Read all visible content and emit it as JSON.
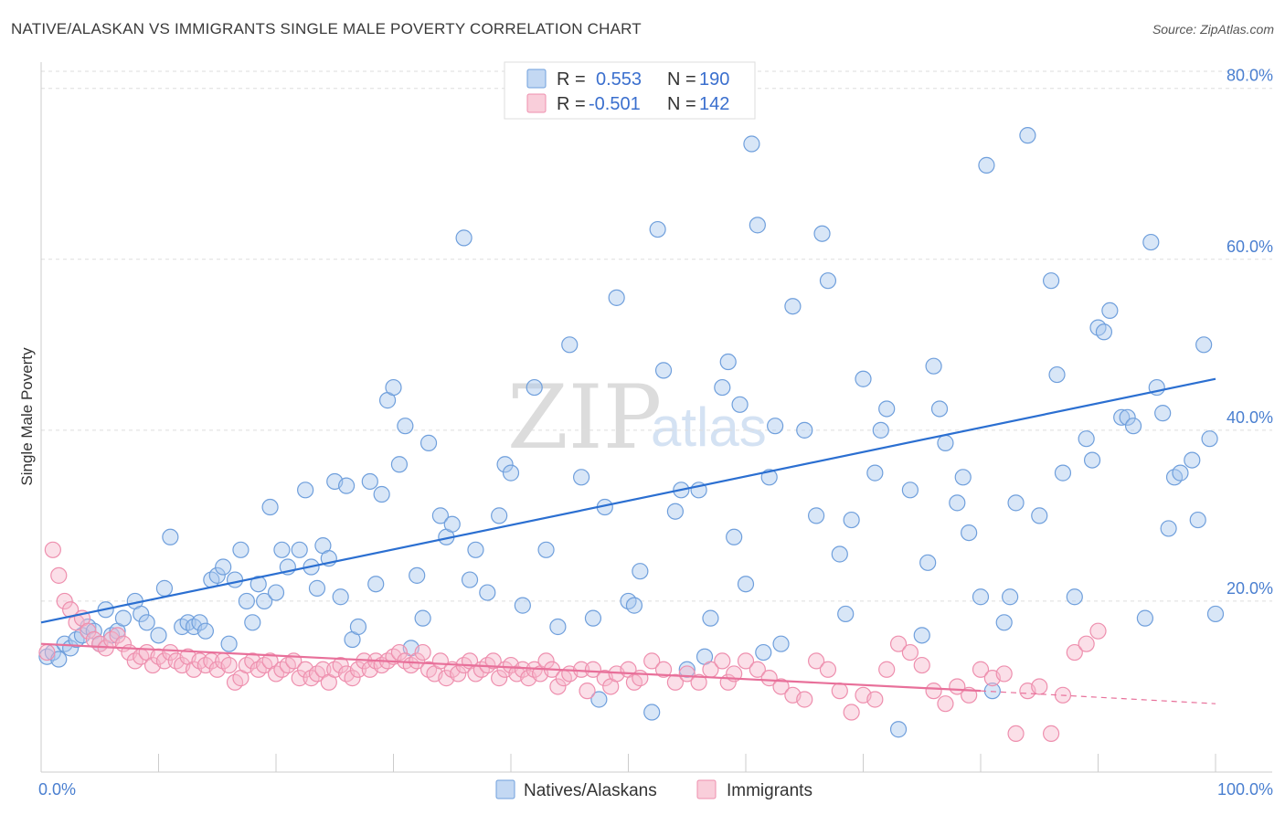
{
  "title": "NATIVE/ALASKAN VS IMMIGRANTS SINGLE MALE POVERTY CORRELATION CHART",
  "source": "Source: ZipAtlas.com",
  "watermark": {
    "part1": "ZIP",
    "part2": "atlas"
  },
  "colors": {
    "natives_fill": "#a9c7ee",
    "natives_stroke": "#6f9fdc",
    "natives_line": "#2b6fd1",
    "immigrants_fill": "#f6b9cb",
    "immigrants_stroke": "#ee8fae",
    "immigrants_line": "#e8709a",
    "axis_label": "#4a7fd0",
    "grid": "#dddddd"
  },
  "legend_top": {
    "rows": [
      {
        "r_label": "R =",
        "r_value": "0.553",
        "n_label": "N =",
        "n_value": "190",
        "series": "natives"
      },
      {
        "r_label": "R =",
        "r_value": "-0.501",
        "n_label": "N =",
        "n_value": "142",
        "series": "immigrants"
      }
    ]
  },
  "legend_bottom": {
    "items": [
      {
        "label": "Natives/Alaskans",
        "series": "natives"
      },
      {
        "label": "Immigrants",
        "series": "immigrants"
      }
    ]
  },
  "chart_data": {
    "type": "scatter",
    "title": "NATIVE/ALASKAN VS IMMIGRANTS SINGLE MALE POVERTY CORRELATION CHART",
    "xlabel": "",
    "ylabel": "Single Male Poverty",
    "xlim": [
      0,
      100
    ],
    "ylim": [
      0,
      82
    ],
    "x_tick_labels": [
      {
        "value": 0,
        "label": "0.0%"
      },
      {
        "value": 100,
        "label": "100.0%"
      }
    ],
    "y_ticks": [
      {
        "value": 20,
        "label": "20.0%"
      },
      {
        "value": 40,
        "label": "40.0%"
      },
      {
        "value": 60,
        "label": "60.0%"
      },
      {
        "value": 80,
        "label": "80.0%"
      }
    ],
    "x_minor_ticks": [
      0,
      10,
      20,
      30,
      40,
      50,
      60,
      70,
      80,
      90,
      100
    ],
    "grid": true,
    "series": [
      {
        "name": "Natives/Alaskans",
        "key": "natives",
        "R": 0.553,
        "N": 190,
        "trend": {
          "x": [
            0,
            100
          ],
          "y": [
            17.5,
            46
          ]
        },
        "points": [
          [
            0.5,
            13.5
          ],
          [
            1,
            14
          ],
          [
            1.5,
            13.2
          ],
          [
            2,
            15
          ],
          [
            2.5,
            14.5
          ],
          [
            3,
            15.5
          ],
          [
            3.5,
            16
          ],
          [
            4,
            17
          ],
          [
            4.5,
            16.5
          ],
          [
            5,
            15
          ],
          [
            5.5,
            19
          ],
          [
            6,
            16
          ],
          [
            6.5,
            16.5
          ],
          [
            7,
            18
          ],
          [
            8,
            20
          ],
          [
            8.5,
            18.5
          ],
          [
            9,
            17.5
          ],
          [
            10,
            16
          ],
          [
            10.5,
            21.5
          ],
          [
            11,
            27.5
          ],
          [
            12,
            17
          ],
          [
            12.5,
            17.5
          ],
          [
            13,
            17
          ],
          [
            13.5,
            17.5
          ],
          [
            14,
            16.5
          ],
          [
            14.5,
            22.5
          ],
          [
            15,
            23
          ],
          [
            15.5,
            24
          ],
          [
            16,
            15
          ],
          [
            16.5,
            22.5
          ],
          [
            17,
            26
          ],
          [
            17.5,
            20
          ],
          [
            18,
            17.5
          ],
          [
            18.5,
            22
          ],
          [
            19,
            20
          ],
          [
            19.5,
            31
          ],
          [
            20,
            21
          ],
          [
            20.5,
            26
          ],
          [
            21,
            24
          ],
          [
            22,
            26
          ],
          [
            22.5,
            33
          ],
          [
            23,
            24
          ],
          [
            23.5,
            21.5
          ],
          [
            24,
            26.5
          ],
          [
            24.5,
            25
          ],
          [
            25,
            34
          ],
          [
            25.5,
            20.5
          ],
          [
            26,
            33.5
          ],
          [
            26.5,
            15.5
          ],
          [
            27,
            17
          ],
          [
            28,
            34
          ],
          [
            28.5,
            22
          ],
          [
            29,
            32.5
          ],
          [
            29.5,
            43.5
          ],
          [
            30,
            45
          ],
          [
            30.5,
            36
          ],
          [
            31,
            40.5
          ],
          [
            31.5,
            14.5
          ],
          [
            32,
            23
          ],
          [
            32.5,
            18
          ],
          [
            33,
            38.5
          ],
          [
            34,
            30
          ],
          [
            34.5,
            27.5
          ],
          [
            35,
            29
          ],
          [
            36,
            62.5
          ],
          [
            36.5,
            22.5
          ],
          [
            37,
            26
          ],
          [
            38,
            21
          ],
          [
            39,
            30
          ],
          [
            39.5,
            36
          ],
          [
            40,
            35
          ],
          [
            41,
            19.5
          ],
          [
            42,
            45
          ],
          [
            43,
            26
          ],
          [
            44,
            17
          ],
          [
            45,
            50
          ],
          [
            46,
            34.5
          ],
          [
            47,
            18
          ],
          [
            47.5,
            8.5
          ],
          [
            48,
            31
          ],
          [
            49,
            55.5
          ],
          [
            50,
            20
          ],
          [
            50.5,
            19.5
          ],
          [
            51,
            23.5
          ],
          [
            52,
            7
          ],
          [
            52.5,
            63.5
          ],
          [
            53,
            47
          ],
          [
            54,
            30.5
          ],
          [
            54.5,
            33
          ],
          [
            55,
            12
          ],
          [
            56,
            33
          ],
          [
            56.5,
            13.5
          ],
          [
            57,
            18
          ],
          [
            58,
            45
          ],
          [
            58.5,
            48
          ],
          [
            59,
            27.5
          ],
          [
            59.5,
            43
          ],
          [
            60,
            22
          ],
          [
            60.5,
            73.5
          ],
          [
            61,
            64
          ],
          [
            61.5,
            14
          ],
          [
            62,
            34.5
          ],
          [
            62.5,
            40.5
          ],
          [
            63,
            15
          ],
          [
            64,
            54.5
          ],
          [
            65,
            40
          ],
          [
            66,
            30
          ],
          [
            66.5,
            63
          ],
          [
            67,
            57.5
          ],
          [
            68,
            25.5
          ],
          [
            68.5,
            18.5
          ],
          [
            69,
            29.5
          ],
          [
            70,
            46
          ],
          [
            71,
            35
          ],
          [
            71.5,
            40
          ],
          [
            72,
            42.5
          ],
          [
            73,
            5
          ],
          [
            74,
            33
          ],
          [
            75,
            16
          ],
          [
            75.5,
            24.5
          ],
          [
            76,
            47.5
          ],
          [
            76.5,
            42.5
          ],
          [
            77,
            38.5
          ],
          [
            78,
            31.5
          ],
          [
            78.5,
            34.5
          ],
          [
            79,
            28
          ],
          [
            80,
            20.5
          ],
          [
            80.5,
            71
          ],
          [
            81,
            9.5
          ],
          [
            82,
            17.5
          ],
          [
            82.5,
            20.5
          ],
          [
            83,
            31.5
          ],
          [
            84,
            74.5
          ],
          [
            85,
            30
          ],
          [
            86,
            57.5
          ],
          [
            86.5,
            46.5
          ],
          [
            87,
            35
          ],
          [
            88,
            20.5
          ],
          [
            89,
            39
          ],
          [
            89.5,
            36.5
          ],
          [
            90,
            52
          ],
          [
            90.5,
            51.5
          ],
          [
            91,
            54
          ],
          [
            92,
            41.5
          ],
          [
            92.5,
            41.5
          ],
          [
            93,
            40.5
          ],
          [
            94,
            18
          ],
          [
            94.5,
            62
          ],
          [
            95,
            45
          ],
          [
            95.5,
            42
          ],
          [
            96,
            28.5
          ],
          [
            96.5,
            34.5
          ],
          [
            97,
            35
          ],
          [
            98,
            36.5
          ],
          [
            98.5,
            29.5
          ],
          [
            99,
            50
          ],
          [
            99.5,
            39
          ],
          [
            100,
            18.5
          ]
        ]
      },
      {
        "name": "Immigrants",
        "key": "immigrants",
        "R": -0.501,
        "N": 142,
        "trend": {
          "x": [
            0,
            80
          ],
          "y": [
            15,
            9.5
          ]
        },
        "trend_dashed": {
          "x": [
            80,
            100
          ],
          "y": [
            9.5,
            8
          ]
        },
        "points": [
          [
            0.5,
            14
          ],
          [
            1,
            26
          ],
          [
            1.5,
            23
          ],
          [
            2,
            20
          ],
          [
            2.5,
            19
          ],
          [
            3,
            17.5
          ],
          [
            3.5,
            18
          ],
          [
            4,
            16.5
          ],
          [
            4.5,
            15.5
          ],
          [
            5,
            15
          ],
          [
            5.5,
            14.5
          ],
          [
            6,
            15.5
          ],
          [
            6.5,
            16
          ],
          [
            7,
            15
          ],
          [
            7.5,
            14
          ],
          [
            8,
            13
          ],
          [
            8.5,
            13.5
          ],
          [
            9,
            14
          ],
          [
            9.5,
            12.5
          ],
          [
            10,
            13.5
          ],
          [
            10.5,
            13
          ],
          [
            11,
            14
          ],
          [
            11.5,
            13
          ],
          [
            12,
            12.5
          ],
          [
            12.5,
            13.5
          ],
          [
            13,
            12
          ],
          [
            13.5,
            13
          ],
          [
            14,
            12.5
          ],
          [
            14.5,
            13
          ],
          [
            15,
            12
          ],
          [
            15.5,
            13
          ],
          [
            16,
            12.5
          ],
          [
            16.5,
            10.5
          ],
          [
            17,
            11
          ],
          [
            17.5,
            12.5
          ],
          [
            18,
            13
          ],
          [
            18.5,
            12
          ],
          [
            19,
            12.5
          ],
          [
            19.5,
            13
          ],
          [
            20,
            11.5
          ],
          [
            20.5,
            12
          ],
          [
            21,
            12.5
          ],
          [
            21.5,
            13
          ],
          [
            22,
            11
          ],
          [
            22.5,
            12
          ],
          [
            23,
            11
          ],
          [
            23.5,
            11.5
          ],
          [
            24,
            12
          ],
          [
            24.5,
            10.5
          ],
          [
            25,
            12
          ],
          [
            25.5,
            12.5
          ],
          [
            26,
            11.5
          ],
          [
            26.5,
            11
          ],
          [
            27,
            12
          ],
          [
            27.5,
            13
          ],
          [
            28,
            12
          ],
          [
            28.5,
            13
          ],
          [
            29,
            12.5
          ],
          [
            29.5,
            13
          ],
          [
            30,
            13.5
          ],
          [
            30.5,
            14
          ],
          [
            31,
            13
          ],
          [
            31.5,
            12.5
          ],
          [
            32,
            13
          ],
          [
            32.5,
            14
          ],
          [
            33,
            12
          ],
          [
            33.5,
            11.5
          ],
          [
            34,
            13
          ],
          [
            34.5,
            11
          ],
          [
            35,
            12
          ],
          [
            35.5,
            11.5
          ],
          [
            36,
            12.5
          ],
          [
            36.5,
            13
          ],
          [
            37,
            11.5
          ],
          [
            37.5,
            12
          ],
          [
            38,
            12.5
          ],
          [
            38.5,
            13
          ],
          [
            39,
            11
          ],
          [
            39.5,
            12
          ],
          [
            40,
            12.5
          ],
          [
            40.5,
            11.5
          ],
          [
            41,
            12
          ],
          [
            41.5,
            11
          ],
          [
            42,
            12
          ],
          [
            42.5,
            11.5
          ],
          [
            43,
            13
          ],
          [
            43.5,
            12
          ],
          [
            44,
            10
          ],
          [
            44.5,
            11
          ],
          [
            45,
            11.5
          ],
          [
            46,
            12
          ],
          [
            46.5,
            9.5
          ],
          [
            47,
            12
          ],
          [
            48,
            11
          ],
          [
            48.5,
            10
          ],
          [
            49,
            11.5
          ],
          [
            50,
            12
          ],
          [
            50.5,
            10.5
          ],
          [
            51,
            11
          ],
          [
            52,
            13
          ],
          [
            53,
            12
          ],
          [
            54,
            10.5
          ],
          [
            55,
            11.5
          ],
          [
            56,
            10.5
          ],
          [
            57,
            12
          ],
          [
            58,
            13
          ],
          [
            58.5,
            10.5
          ],
          [
            59,
            11.5
          ],
          [
            60,
            13
          ],
          [
            61,
            12
          ],
          [
            62,
            11
          ],
          [
            63,
            10
          ],
          [
            64,
            9
          ],
          [
            65,
            8.5
          ],
          [
            66,
            13
          ],
          [
            67,
            12
          ],
          [
            68,
            9.5
          ],
          [
            69,
            7
          ],
          [
            70,
            9
          ],
          [
            71,
            8.5
          ],
          [
            72,
            12
          ],
          [
            73,
            15
          ],
          [
            74,
            14
          ],
          [
            75,
            12.5
          ],
          [
            76,
            9.5
          ],
          [
            77,
            8
          ],
          [
            78,
            10
          ],
          [
            79,
            9
          ],
          [
            80,
            12
          ],
          [
            81,
            11
          ],
          [
            82,
            11.5
          ],
          [
            83,
            4.5
          ],
          [
            84,
            9.5
          ],
          [
            85,
            10
          ],
          [
            86,
            4.5
          ],
          [
            87,
            9
          ],
          [
            88,
            14
          ],
          [
            89,
            15
          ],
          [
            90,
            16.5
          ]
        ]
      }
    ]
  }
}
